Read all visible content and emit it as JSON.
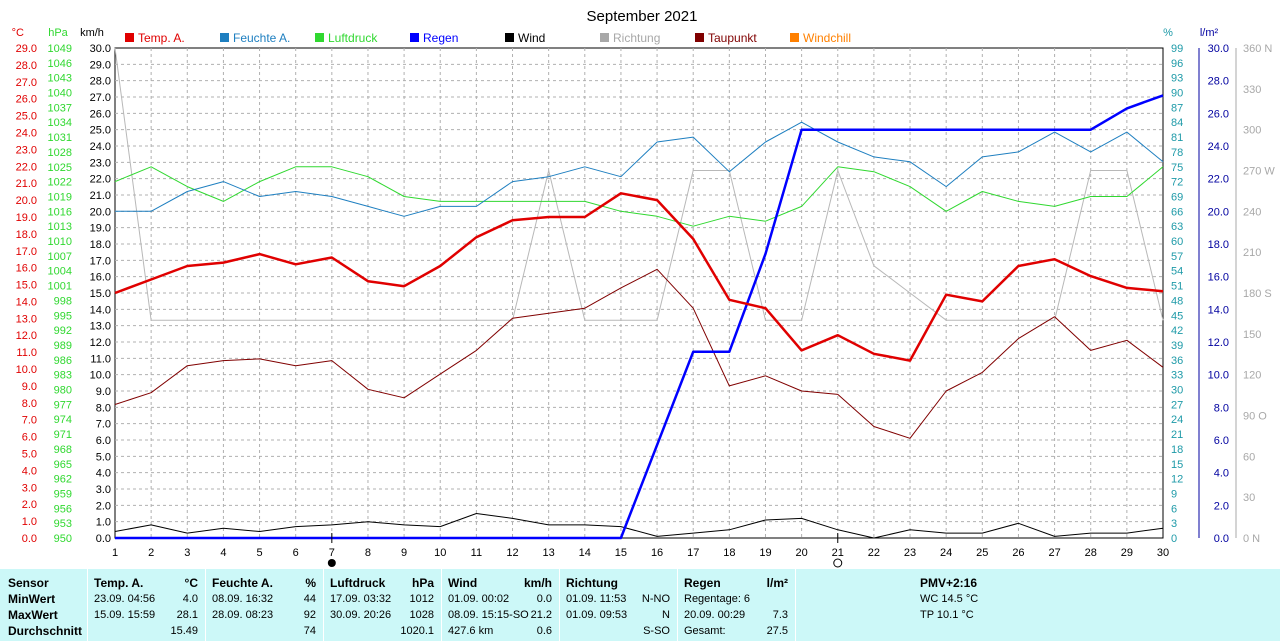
{
  "chart_data": {
    "type": "line",
    "title": "September 2021",
    "x": [
      1,
      2,
      3,
      4,
      5,
      6,
      7,
      8,
      9,
      10,
      11,
      12,
      13,
      14,
      15,
      16,
      17,
      18,
      19,
      20,
      21,
      22,
      23,
      24,
      25,
      26,
      27,
      28,
      29,
      30
    ],
    "legend": [
      {
        "name": "Temp. A.",
        "color": "#e00000"
      },
      {
        "name": "Feuchte A.",
        "color": "#1e7fc0"
      },
      {
        "name": "Luftdruck",
        "color": "#30d830"
      },
      {
        "name": "Regen",
        "color": "#0000ff"
      },
      {
        "name": "Wind",
        "color": "#000000"
      },
      {
        "name": "Richtung",
        "color": "#a8a8a8"
      },
      {
        "name": "Taupunkt",
        "color": "#800000"
      },
      {
        "name": "Windchill",
        "color": "#ff8000"
      }
    ],
    "axes": {
      "temp": {
        "unit": "°C",
        "min": 0,
        "max": 29,
        "color": "#e00000",
        "ticks": [
          "0.0",
          "1.0",
          "2.0",
          "3.0",
          "4.0",
          "5.0",
          "6.0",
          "7.0",
          "8.0",
          "9.0",
          "10.0",
          "11.0",
          "12.0",
          "13.0",
          "14.0",
          "15.0",
          "16.0",
          "17.0",
          "18.0",
          "19.0",
          "20.0",
          "21.0",
          "22.0",
          "23.0",
          "24.0",
          "25.0",
          "26.0",
          "27.0",
          "28.0",
          "29.0"
        ]
      },
      "press": {
        "unit": "hPa",
        "min": 950,
        "max": 1049,
        "color": "#30d830",
        "ticks": [
          "950",
          "953",
          "956",
          "959",
          "962",
          "965",
          "968",
          "971",
          "974",
          "977",
          "980",
          "983",
          "986",
          "989",
          "992",
          "995",
          "998",
          "1001",
          "1004",
          "1007",
          "1010",
          "1013",
          "1016",
          "1019",
          "1022",
          "1025",
          "1028",
          "1031",
          "1034",
          "1037",
          "1040",
          "1043",
          "1046",
          "1049"
        ]
      },
      "wind": {
        "unit": "km/h",
        "min": 0,
        "max": 30,
        "color": "#000000",
        "ticks": [
          "0.0",
          "1.0",
          "2.0",
          "3.0",
          "4.0",
          "5.0",
          "6.0",
          "7.0",
          "8.0",
          "9.0",
          "10.0",
          "11.0",
          "12.0",
          "13.0",
          "14.0",
          "15.0",
          "16.0",
          "17.0",
          "18.0",
          "19.0",
          "20.0",
          "21.0",
          "22.0",
          "23.0",
          "24.0",
          "25.0",
          "26.0",
          "27.0",
          "28.0",
          "29.0",
          "30.0"
        ]
      },
      "hum": {
        "unit": "%",
        "min": 0,
        "max": 99,
        "color": "#1e9aa8",
        "ticks": [
          "0",
          "3",
          "6",
          "9",
          "12",
          "15",
          "18",
          "21",
          "24",
          "27",
          "30",
          "33",
          "36",
          "39",
          "42",
          "45",
          "48",
          "51",
          "54",
          "57",
          "60",
          "63",
          "66",
          "69",
          "72",
          "75",
          "78",
          "81",
          "84",
          "87",
          "90",
          "93",
          "96",
          "99"
        ]
      },
      "rain": {
        "unit": "l/m²",
        "min": 0,
        "max": 30,
        "color": "#0000a0",
        "ticks": [
          "0.0",
          "2.0",
          "4.0",
          "6.0",
          "8.0",
          "10.0",
          "12.0",
          "14.0",
          "16.0",
          "18.0",
          "20.0",
          "22.0",
          "24.0",
          "26.0",
          "28.0",
          "30.0"
        ]
      },
      "dir": {
        "unit": "",
        "min": 0,
        "max": 360,
        "color": "#a8a8a8",
        "ticks": [
          "0 N",
          "30",
          "60",
          "90 O",
          "120",
          "150",
          "180 S",
          "210",
          "240",
          "270 W",
          "300",
          "330",
          "360 N"
        ]
      }
    },
    "series": [
      {
        "name": "Temp. A.",
        "axis": "temp",
        "color": "#e00000",
        "width": 2.5,
        "values": [
          14.5,
          15.3,
          16.1,
          16.3,
          16.8,
          16.2,
          16.6,
          15.2,
          14.9,
          16.1,
          17.8,
          18.8,
          19.0,
          19.0,
          20.4,
          20.0,
          17.7,
          14.1,
          13.6,
          11.1,
          12.0,
          10.9,
          10.5,
          14.4,
          14.0,
          16.1,
          16.5,
          15.5,
          14.8,
          14.6
        ]
      },
      {
        "name": "Feuchte A.",
        "axis": "hum",
        "color": "#1e7fc0",
        "width": 1,
        "values": [
          66,
          66,
          70,
          72,
          69,
          70,
          69,
          67,
          65,
          67,
          67,
          72,
          73,
          75,
          73,
          80,
          81,
          74,
          80,
          84,
          80,
          77,
          76,
          71,
          77,
          78,
          82,
          78,
          82,
          76
        ]
      },
      {
        "name": "Luftdruck",
        "axis": "press",
        "color": "#30d830",
        "width": 1,
        "values": [
          1022,
          1025,
          1021,
          1018,
          1022,
          1025,
          1025,
          1023,
          1019,
          1018,
          1018,
          1018,
          1018,
          1018,
          1016,
          1015,
          1013,
          1015,
          1014,
          1017,
          1025,
          1024,
          1021,
          1016,
          1020,
          1018,
          1017,
          1019,
          1019,
          1025
        ]
      },
      {
        "name": "Regen",
        "axis": "rain",
        "color": "#0000ff",
        "width": 2.5,
        "values": [
          0,
          0,
          0,
          0,
          0,
          0,
          0,
          0,
          0,
          0,
          0,
          0,
          0,
          0,
          0,
          5.7,
          11.4,
          11.4,
          17.4,
          25.0,
          25.0,
          25.0,
          25.0,
          25.0,
          25.0,
          25.0,
          25.0,
          25.0,
          26.3,
          27.1
        ]
      },
      {
        "name": "Wind",
        "axis": "wind",
        "color": "#000000",
        "width": 1,
        "values": [
          0.4,
          0.8,
          0.3,
          0.6,
          0.4,
          0.7,
          0.8,
          1.0,
          0.8,
          0.7,
          1.5,
          1.2,
          0.8,
          0.8,
          0.7,
          0.1,
          0.3,
          0.5,
          1.1,
          1.2,
          0.5,
          0.0,
          0.5,
          0.3,
          0.3,
          0.9,
          0.1,
          0.3,
          0.3,
          0.6
        ]
      },
      {
        "name": "Richtung",
        "axis": "dir",
        "color": "#b8b8b8",
        "width": 1,
        "values": [
          360,
          160,
          160,
          160,
          160,
          160,
          160,
          160,
          160,
          160,
          160,
          160,
          270,
          160,
          160,
          160,
          270,
          270,
          160,
          160,
          270,
          200,
          180,
          160,
          160,
          160,
          160,
          270,
          270,
          160
        ]
      },
      {
        "name": "Taupunkt",
        "axis": "temp",
        "color": "#800000",
        "width": 1,
        "values": [
          7.9,
          8.6,
          10.2,
          10.5,
          10.6,
          10.2,
          10.5,
          8.8,
          8.3,
          9.7,
          11.1,
          13.0,
          13.3,
          13.6,
          14.8,
          15.9,
          13.6,
          9.0,
          9.6,
          8.7,
          8.5,
          6.6,
          5.9,
          8.7,
          9.8,
          11.8,
          13.1,
          11.1,
          11.7,
          10.1
        ]
      }
    ],
    "xaxis_ticks": [
      "1",
      "2",
      "3",
      "4",
      "5",
      "6",
      "7",
      "8",
      "9",
      "10",
      "11",
      "12",
      "13",
      "14",
      "15",
      "16",
      "17",
      "18",
      "19",
      "20",
      "21",
      "22",
      "23",
      "24",
      "25",
      "26",
      "27",
      "28",
      "29",
      "30"
    ],
    "moon_markers": [
      {
        "day": 7,
        "phase": "new"
      },
      {
        "day": 21,
        "phase": "full"
      }
    ],
    "grid": true
  },
  "stats": {
    "sensor": {
      "header": "Sensor",
      "rows": [
        "MinWert",
        "MaxWert",
        "Durchschnitt"
      ]
    },
    "temp": {
      "header": "Temp. A.",
      "unit": "°C",
      "rows": [
        [
          "23.09.  04:56",
          "4.0"
        ],
        [
          "15.09.  15:59",
          "28.1"
        ],
        [
          "",
          "15.49"
        ]
      ]
    },
    "hum": {
      "header": "Feuchte A.",
      "unit": "%",
      "rows": [
        [
          "08.09.  16:32",
          "44"
        ],
        [
          "28.09.  08:23",
          "92"
        ],
        [
          "",
          "74"
        ]
      ]
    },
    "press": {
      "header": "Luftdruck",
      "unit": "hPa",
      "rows": [
        [
          "17.09.  03:32",
          "1012"
        ],
        [
          "30.09.  20:26",
          "1028"
        ],
        [
          "",
          "1020.1"
        ]
      ]
    },
    "wind": {
      "header": "Wind",
      "unit": "km/h",
      "rows": [
        [
          "01.09.  00:02",
          "0.0"
        ],
        [
          "08.09.  15:15-SO",
          "21.2"
        ],
        [
          "427.6 km",
          "0.6"
        ]
      ]
    },
    "dir": {
      "header": "Richtung",
      "rows": [
        [
          "01.09.  11:53",
          "N-NO"
        ],
        [
          "01.09.  09:53",
          "N"
        ],
        [
          "",
          "S-SO"
        ]
      ]
    },
    "rain": {
      "header": "Regen",
      "unit": "l/m²",
      "rows": [
        [
          "Regentage: 6",
          ""
        ],
        [
          "20.09.  00:29",
          "7.3"
        ],
        [
          "Gesamt:",
          "27.5"
        ]
      ]
    },
    "pmv": {
      "header": "PMV+2:16",
      "rows": [
        "WC 14.5 °C",
        "TP 10.1 °C"
      ]
    }
  }
}
